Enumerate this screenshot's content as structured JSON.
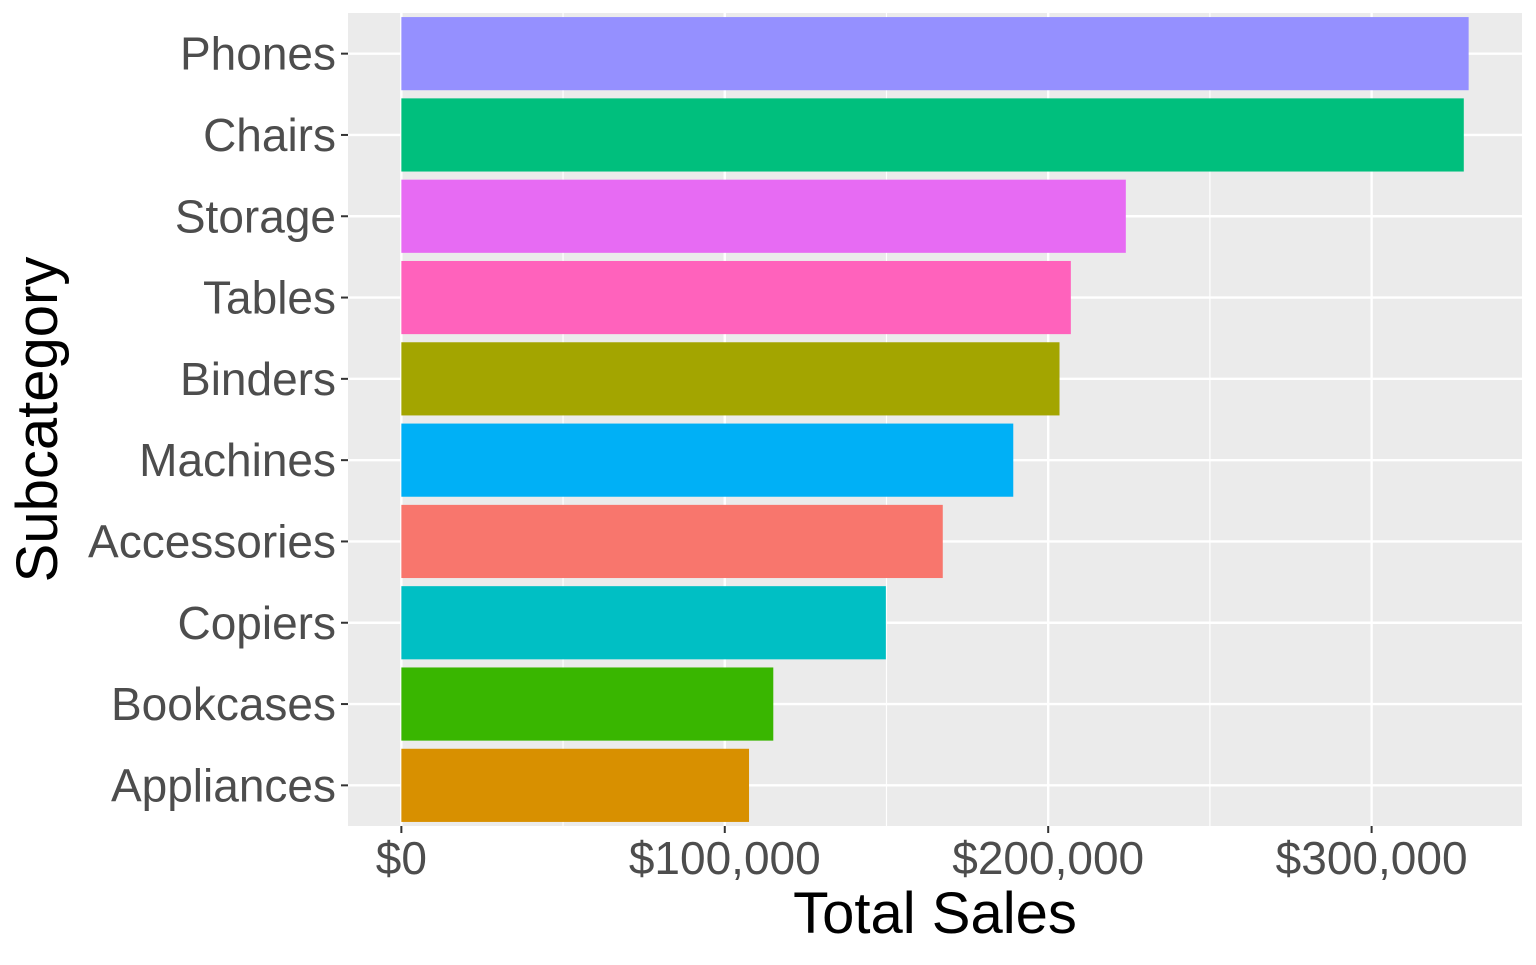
{
  "chart_data": {
    "type": "bar",
    "orientation": "horizontal",
    "categories": [
      "Phones",
      "Chairs",
      "Storage",
      "Tables",
      "Binders",
      "Machines",
      "Accessories",
      "Copiers",
      "Bookcases",
      "Appliances"
    ],
    "values": [
      330000,
      328500,
      224000,
      207000,
      203500,
      189200,
      167400,
      149800,
      115000,
      107500
    ],
    "colors": [
      "#9590FF",
      "#00BF7D",
      "#E76BF3",
      "#FF62BC",
      "#A3A500",
      "#00B0F6",
      "#F8766D",
      "#00BFC4",
      "#39B600",
      "#D89000"
    ],
    "xlabel": "Total Sales",
    "ylabel": "Subcategory",
    "x_ticks": [
      0,
      100000,
      200000,
      300000
    ],
    "x_tick_labels": [
      "$0",
      "$100,000",
      "$200,000",
      "$300,000"
    ],
    "xlim": [
      -16500,
      346500
    ],
    "grid": true,
    "panel_background": "#EBEBEB",
    "grid_color": "#FFFFFF",
    "legend": "none"
  }
}
